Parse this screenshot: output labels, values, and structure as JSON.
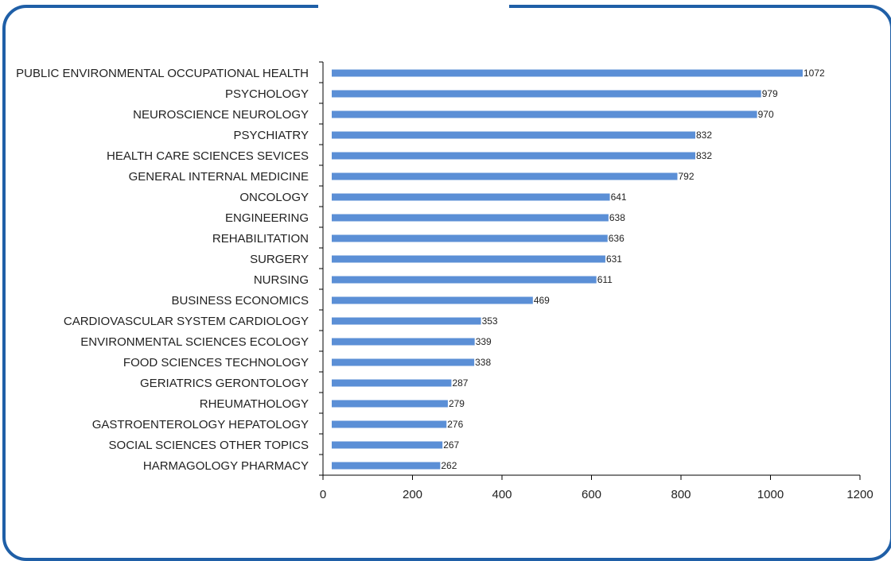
{
  "chart_data": {
    "type": "bar",
    "orientation": "horizontal",
    "title": "",
    "xlabel": "",
    "ylabel": "",
    "xlim": [
      0,
      1200
    ],
    "xticks": [
      0,
      200,
      400,
      600,
      800,
      1000,
      1200
    ],
    "grid": false,
    "legend": "none",
    "bar_color": "#5b8fd6",
    "categories": [
      "PUBLIC ENVIRONMENTAL OCCUPATIONAL HEALTH",
      "PSYCHOLOGY",
      "NEUROSCIENCE NEUROLOGY",
      "PSYCHIATRY",
      "HEALTH CARE SCIENCES SEVICES",
      "GENERAL INTERNAL MEDICINE",
      "ONCOLOGY",
      "ENGINEERING",
      "REHABILITATION",
      "SURGERY",
      "NURSING",
      "BUSINESS ECONOMICS",
      "CARDIOVASCULAR SYSTEM CARDIOLOGY",
      "ENVIRONMENTAL SCIENCES ECOLOGY",
      "FOOD SCIENCES TECHNOLOGY",
      "GERIATRICS GERONTOLOGY",
      "RHEUMATHOLOGY",
      "GASTROENTEROLOGY HEPATOLOGY",
      "SOCIAL SCIENCES OTHER TOPICS",
      "HARMAGOLOGY PHARMACY"
    ],
    "values": [
      1072,
      979,
      970,
      832,
      832,
      792,
      641,
      638,
      636,
      631,
      611,
      469,
      353,
      339,
      338,
      287,
      279,
      276,
      267,
      262
    ]
  },
  "frame_color": "#1f5fa7"
}
